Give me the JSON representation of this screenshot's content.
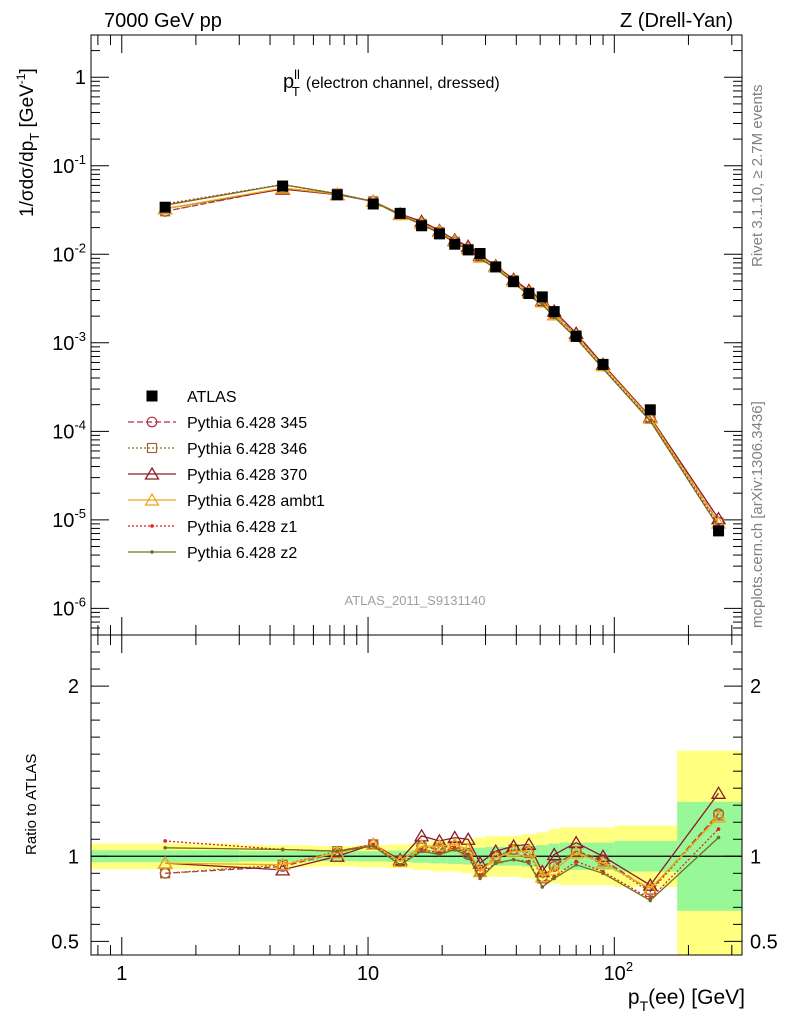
{
  "header": {
    "left": "7000 GeV pp",
    "right": "Z (Drell-Yan)"
  },
  "plot_label": {
    "main": "p",
    "sup": "ll",
    "sub": "T",
    "rest": "(electron channel, dressed)"
  },
  "analysis_id": "ATLAS_2011_S9131140",
  "side_labels": {
    "rivet": "Rivet 3.1.10, ≥ 2.7M events",
    "mcplots": "mcplots.cern.ch [arXiv:1306.3436]"
  },
  "colors": {
    "ATLAS": "#000000",
    "345": "#b03040",
    "346": "#a06a28",
    "370": "#8b1a2a",
    "ambt1": "#f0a818",
    "z1": "#e02020",
    "z2": "#707020",
    "band_yellow": "#ffff80",
    "band_green": "#98f898"
  },
  "chart_data": [
    {
      "type": "line",
      "panel": "main",
      "ylabel": "1/σdσ/dp_T [GeV^-1]",
      "xscale": "log",
      "yscale": "log",
      "xlim": [
        0.75,
        330
      ],
      "ylim": [
        5e-07,
        3
      ],
      "x_ticks": [],
      "y_ticks": [
        "1",
        "10^-1",
        "10^-2",
        "10^-3",
        "10^-4",
        "10^-5",
        "10^-6"
      ],
      "legend_position": "left",
      "x": [
        1.5,
        4.5,
        7.5,
        10.5,
        13.5,
        16.5,
        19.5,
        22.5,
        25.5,
        28.5,
        33,
        39,
        45,
        51,
        57,
        70,
        90,
        140,
        265
      ],
      "series": [
        {
          "name": "ATLAS",
          "marker": "square",
          "values": [
            0.034,
            0.059,
            0.047,
            0.037,
            0.029,
            0.021,
            0.017,
            0.013,
            0.0112,
            0.0102,
            0.0072,
            0.0049,
            0.0036,
            0.0033,
            0.00225,
            0.00118,
            0.00057,
            0.000175,
            7.5e-06
          ]
        },
        {
          "name": "Pythia 6.428 345",
          "marker": "circle",
          "dash": "6,3",
          "values": [
            0.0305,
            0.0555,
            0.0482,
            0.0395,
            0.0283,
            0.0222,
            0.0177,
            0.0138,
            0.0113,
            0.0094,
            0.0072,
            0.0051,
            0.0037,
            0.0029,
            0.00212,
            0.00122,
            0.00056,
            0.00014,
            9.4e-06
          ]
        },
        {
          "name": "Pythia 6.428 346",
          "marker": "square-open",
          "dash": "2,2",
          "values": [
            0.0306,
            0.0561,
            0.0484,
            0.0397,
            0.0281,
            0.0221,
            0.0178,
            0.0138,
            0.0114,
            0.0093,
            0.0072,
            0.0051,
            0.0037,
            0.0029,
            0.00213,
            0.00122,
            0.00055,
            0.000138,
            9.3e-06
          ]
        },
        {
          "name": "Pythia 6.428 370",
          "marker": "triangle",
          "dash": "",
          "values": [
            0.0327,
            0.0545,
            0.0472,
            0.0397,
            0.0285,
            0.0235,
            0.0185,
            0.0145,
            0.0123,
            0.0098,
            0.0074,
            0.0052,
            0.0039,
            0.003,
            0.00228,
            0.00128,
            0.00057,
            0.000145,
            1.03e-05
          ]
        },
        {
          "name": "Pythia 6.428 ambt1",
          "marker": "triangle",
          "dash": "",
          "values": [
            0.0326,
            0.056,
            0.0479,
            0.0396,
            0.0281,
            0.0223,
            0.018,
            0.014,
            0.0116,
            0.0093,
            0.0072,
            0.005,
            0.0037,
            0.0029,
            0.00207,
            0.0012,
            0.00055,
            0.000141,
            9.2e-06
          ]
        },
        {
          "name": "Pythia 6.428 z1",
          "marker": "dot",
          "dash": "2,2",
          "values": [
            0.037,
            0.0615,
            0.0484,
            0.0395,
            0.0276,
            0.0219,
            0.0174,
            0.0137,
            0.0113,
            0.0091,
            0.0069,
            0.0048,
            0.0035,
            0.0027,
            0.00198,
            0.00114,
            0.00052,
            0.000132,
            8.7e-06
          ]
        },
        {
          "name": "Pythia 6.428 z2",
          "marker": "dot",
          "dash": "",
          "values": [
            0.0358,
            0.0612,
            0.0482,
            0.0393,
            0.0276,
            0.0217,
            0.0172,
            0.0135,
            0.0112,
            0.0089,
            0.0069,
            0.0048,
            0.0034,
            0.0027,
            0.00196,
            0.00112,
            0.00051,
            0.00013,
            8.3e-06
          ]
        }
      ]
    },
    {
      "type": "line",
      "panel": "ratio",
      "xlabel": "p_T(ee) [GeV]",
      "ylabel": "Ratio to ATLAS",
      "xscale": "log",
      "xlim": [
        0.75,
        330
      ],
      "ylim": [
        0.42,
        2.3
      ],
      "x_ticks": [
        "1",
        "10",
        "10^2"
      ],
      "y_ticks": [
        "0.5",
        "1",
        "2"
      ],
      "reference": 1,
      "bands": {
        "bin_edges": [
          0.75,
          3,
          6,
          9,
          12,
          15,
          18,
          21,
          24,
          27,
          30,
          36,
          42,
          48,
          54,
          60,
          80,
          100,
          180,
          330
        ],
        "yellow_half_width": [
          0.075,
          0.065,
          0.06,
          0.065,
          0.07,
          0.08,
          0.09,
          0.09,
          0.1,
          0.11,
          0.12,
          0.12,
          0.13,
          0.14,
          0.16,
          0.17,
          0.17,
          0.18,
          0.62
        ],
        "green_half_width": [
          0.035,
          0.03,
          0.028,
          0.03,
          0.033,
          0.038,
          0.042,
          0.045,
          0.048,
          0.05,
          0.055,
          0.055,
          0.06,
          0.065,
          0.075,
          0.08,
          0.08,
          0.09,
          0.32
        ]
      },
      "x": [
        1.5,
        4.5,
        7.5,
        10.5,
        13.5,
        16.5,
        19.5,
        22.5,
        25.5,
        28.5,
        33,
        39,
        45,
        51,
        57,
        70,
        90,
        140,
        265
      ],
      "series": [
        {
          "name": "Pythia 6.428 345",
          "values": [
            0.9,
            0.94,
            1.02,
            1.07,
            0.97,
            1.06,
            1.04,
            1.06,
            1.01,
            0.92,
            1.0,
            1.04,
            1.03,
            0.88,
            0.94,
            1.03,
            0.98,
            0.8,
            1.25
          ]
        },
        {
          "name": "Pythia 6.428 346",
          "values": [
            0.9,
            0.95,
            1.03,
            1.07,
            0.97,
            1.05,
            1.05,
            1.06,
            1.02,
            0.91,
            1.0,
            1.04,
            1.02,
            0.87,
            0.95,
            1.03,
            0.97,
            0.79,
            1.24
          ]
        },
        {
          "name": "Pythia 6.428 370",
          "values": [
            0.96,
            0.92,
            1.0,
            1.07,
            0.98,
            1.12,
            1.09,
            1.11,
            1.1,
            0.96,
            1.03,
            1.06,
            1.07,
            0.91,
            1.01,
            1.08,
            1.0,
            0.83,
            1.37
          ]
        },
        {
          "name": "Pythia 6.428 ambt1",
          "values": [
            0.96,
            0.95,
            1.02,
            1.07,
            0.97,
            1.06,
            1.06,
            1.07,
            1.04,
            0.91,
            0.99,
            1.03,
            1.03,
            0.88,
            0.92,
            1.02,
            0.96,
            0.81,
            1.23
          ]
        },
        {
          "name": "Pythia 6.428 z1",
          "values": [
            1.09,
            1.04,
            1.03,
            1.07,
            0.95,
            1.04,
            1.02,
            1.05,
            1.01,
            0.89,
            0.96,
            0.98,
            0.97,
            0.82,
            0.88,
            0.97,
            0.91,
            0.75,
            1.16
          ]
        },
        {
          "name": "Pythia 6.428 z2",
          "values": [
            1.05,
            1.04,
            1.03,
            1.06,
            0.95,
            1.03,
            1.01,
            1.04,
            1.0,
            0.87,
            0.96,
            0.98,
            0.96,
            0.82,
            0.87,
            0.95,
            0.9,
            0.74,
            1.11
          ]
        }
      ]
    }
  ]
}
